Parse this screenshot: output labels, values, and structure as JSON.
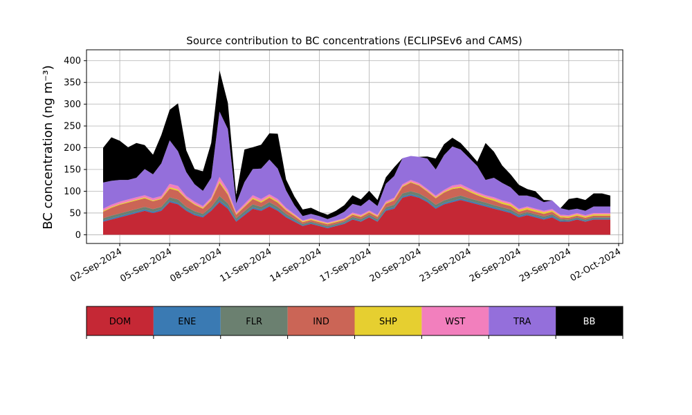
{
  "chart_data": {
    "type": "area",
    "stacked": true,
    "title": "Source contribution to BC concentrations (ECLIPSEv6 and CAMS)",
    "xlabel": "",
    "ylabel": "BC concentration (ng m⁻³)",
    "ylim": [
      -20,
      425
    ],
    "xlim": [
      "2024-08-31T00:00",
      "2024-10-02T06:00"
    ],
    "yticks": [
      0,
      50,
      100,
      150,
      200,
      250,
      300,
      350,
      400
    ],
    "ytick_labels": [
      "0",
      "50",
      "100",
      "150",
      "200",
      "250",
      "300",
      "350",
      "400"
    ],
    "xticks": [
      "2024-09-02",
      "2024-09-05",
      "2024-09-08",
      "2024-09-11",
      "2024-09-14",
      "2024-09-17",
      "2024-09-20",
      "2024-09-23",
      "2024-09-26",
      "2024-09-29",
      "2024-10-02"
    ],
    "xtick_labels": [
      "02-Sep-2024",
      "05-Sep-2024",
      "08-Sep-2024",
      "11-Sep-2024",
      "14-Sep-2024",
      "17-Sep-2024",
      "20-Sep-2024",
      "23-Sep-2024",
      "26-Sep-2024",
      "29-Sep-2024",
      "02-Oct-2024"
    ],
    "grid": true,
    "legend": "bottom (colour bar)",
    "x": [
      "2024-09-01",
      "2024-09-01T12:00",
      "2024-09-02",
      "2024-09-02T12:00",
      "2024-09-03",
      "2024-09-03T12:00",
      "2024-09-04",
      "2024-09-04T12:00",
      "2024-09-05",
      "2024-09-05T12:00",
      "2024-09-06",
      "2024-09-06T12:00",
      "2024-09-07",
      "2024-09-07T12:00",
      "2024-09-08",
      "2024-09-08T12:00",
      "2024-09-09",
      "2024-09-09T12:00",
      "2024-09-10",
      "2024-09-10T12:00",
      "2024-09-11",
      "2024-09-11T12:00",
      "2024-09-12",
      "2024-09-12T12:00",
      "2024-09-13",
      "2024-09-13T12:00",
      "2024-09-14",
      "2024-09-14T12:00",
      "2024-09-15",
      "2024-09-15T12:00",
      "2024-09-16",
      "2024-09-16T12:00",
      "2024-09-17",
      "2024-09-17T12:00",
      "2024-09-18",
      "2024-09-18T12:00",
      "2024-09-19",
      "2024-09-19T12:00",
      "2024-09-20",
      "2024-09-20T12:00",
      "2024-09-21",
      "2024-09-21T12:00",
      "2024-09-22",
      "2024-09-22T12:00",
      "2024-09-23",
      "2024-09-23T12:00",
      "2024-09-24",
      "2024-09-24T12:00",
      "2024-09-25",
      "2024-09-25T12:00",
      "2024-09-26",
      "2024-09-26T12:00",
      "2024-09-27",
      "2024-09-27T12:00",
      "2024-09-28",
      "2024-09-28T12:00",
      "2024-09-29",
      "2024-09-29T12:00",
      "2024-09-30",
      "2024-09-30T12:00",
      "2024-10-01",
      "2024-10-01T12:00"
    ],
    "series": [
      {
        "name": "DOM",
        "color": "#c52835",
        "values": [
          30,
          35,
          40,
          45,
          50,
          55,
          50,
          55,
          75,
          70,
          55,
          45,
          40,
          55,
          75,
          60,
          30,
          45,
          60,
          55,
          65,
          55,
          40,
          30,
          20,
          25,
          20,
          15,
          20,
          25,
          35,
          30,
          40,
          30,
          55,
          60,
          85,
          90,
          85,
          75,
          60,
          70,
          75,
          80,
          75,
          70,
          65,
          60,
          55,
          50,
          40,
          45,
          40,
          35,
          40,
          30,
          30,
          35,
          30,
          35,
          35,
          35
        ]
      },
      {
        "name": "ENE",
        "color": "#3a7ab3",
        "values": [
          3,
          3,
          3,
          3,
          3,
          3,
          3,
          3,
          3,
          3,
          3,
          3,
          3,
          3,
          4,
          4,
          3,
          3,
          3,
          3,
          3,
          3,
          3,
          3,
          2,
          2,
          2,
          2,
          2,
          2,
          2,
          2,
          2,
          2,
          3,
          3,
          3,
          3,
          3,
          3,
          3,
          3,
          3,
          3,
          3,
          3,
          3,
          3,
          3,
          3,
          3,
          3,
          3,
          3,
          3,
          3,
          2,
          2,
          2,
          2,
          2,
          2
        ]
      },
      {
        "name": "FLR",
        "color": "#6b8070",
        "values": [
          5,
          6,
          6,
          6,
          6,
          6,
          6,
          6,
          8,
          8,
          6,
          6,
          5,
          6,
          10,
          8,
          5,
          6,
          7,
          6,
          7,
          6,
          5,
          4,
          3,
          3,
          3,
          3,
          3,
          3,
          4,
          4,
          4,
          4,
          5,
          6,
          7,
          7,
          7,
          6,
          6,
          6,
          7,
          7,
          6,
          6,
          6,
          5,
          5,
          5,
          4,
          4,
          4,
          4,
          4,
          3,
          3,
          3,
          3,
          3,
          3,
          3
        ]
      },
      {
        "name": "IND",
        "color": "#cb6556",
        "values": [
          15,
          18,
          20,
          20,
          20,
          20,
          18,
          18,
          20,
          20,
          18,
          15,
          12,
          15,
          30,
          20,
          8,
          10,
          12,
          10,
          10,
          10,
          8,
          6,
          4,
          4,
          4,
          4,
          4,
          4,
          5,
          5,
          5,
          5,
          8,
          10,
          15,
          20,
          18,
          15,
          15,
          18,
          20,
          18,
          15,
          12,
          10,
          10,
          8,
          8,
          6,
          6,
          6,
          6,
          6,
          4,
          4,
          4,
          4,
          4,
          4,
          4
        ]
      },
      {
        "name": "SHP",
        "color": "#e6cf30",
        "values": [
          2,
          2,
          2,
          2,
          2,
          2,
          2,
          2,
          3,
          3,
          2,
          2,
          2,
          2,
          4,
          3,
          2,
          2,
          3,
          3,
          3,
          3,
          2,
          2,
          2,
          2,
          2,
          2,
          2,
          2,
          2,
          2,
          2,
          2,
          2,
          2,
          2,
          2,
          2,
          2,
          2,
          2,
          3,
          3,
          3,
          3,
          3,
          4,
          4,
          4,
          4,
          4,
          4,
          4,
          3,
          3,
          3,
          3,
          3,
          3,
          3,
          3
        ]
      },
      {
        "name": "WST",
        "color": "#f27fbd",
        "values": [
          5,
          5,
          5,
          5,
          5,
          5,
          5,
          5,
          8,
          8,
          5,
          5,
          4,
          5,
          10,
          8,
          4,
          5,
          6,
          5,
          5,
          5,
          4,
          3,
          2,
          2,
          2,
          2,
          2,
          2,
          3,
          3,
          3,
          3,
          4,
          4,
          4,
          4,
          4,
          4,
          4,
          4,
          5,
          5,
          5,
          4,
          4,
          4,
          4,
          4,
          3,
          3,
          3,
          3,
          3,
          3,
          3,
          3,
          3,
          3,
          3,
          3
        ]
      },
      {
        "name": "TRA",
        "color": "#946fdb",
        "values": [
          60,
          55,
          50,
          45,
          45,
          60,
          55,
          75,
          100,
          80,
          55,
          40,
          35,
          45,
          150,
          140,
          20,
          50,
          60,
          70,
          80,
          70,
          40,
          20,
          10,
          10,
          10,
          8,
          10,
          15,
          20,
          20,
          25,
          20,
          40,
          50,
          60,
          55,
          60,
          70,
          60,
          80,
          90,
          80,
          70,
          60,
          35,
          45,
          40,
          35,
          30,
          25,
          25,
          20,
          20,
          15,
          12,
          10,
          10,
          15,
          15,
          15
        ]
      },
      {
        "name": "BB",
        "color": "#000000",
        "values": [
          80,
          100,
          90,
          75,
          80,
          55,
          45,
          65,
          70,
          110,
          50,
          35,
          45,
          80,
          95,
          60,
          20,
          75,
          50,
          55,
          60,
          80,
          25,
          20,
          15,
          14,
          10,
          10,
          12,
          15,
          20,
          15,
          20,
          14,
          15,
          20,
          0,
          0,
          0,
          5,
          25,
          25,
          20,
          15,
          13,
          10,
          85,
          60,
          40,
          30,
          25,
          15,
          15,
          5,
          0,
          0,
          25,
          25,
          25,
          30,
          30,
          25
        ]
      }
    ],
    "colorbar": {
      "labels": [
        "DOM",
        "ENE",
        "FLR",
        "IND",
        "SHP",
        "WST",
        "TRA",
        "BB"
      ],
      "colors": [
        "#c52835",
        "#3a7ab3",
        "#6b8070",
        "#cb6556",
        "#e6cf30",
        "#f27fbd",
        "#946fdb",
        "#000000"
      ]
    }
  }
}
